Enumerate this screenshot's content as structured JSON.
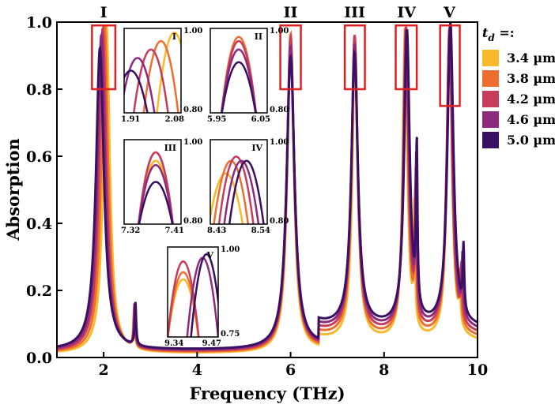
{
  "chart_data": {
    "type": "line",
    "title": "",
    "xlabel": "Frequency (THz)",
    "ylabel": "Absorption",
    "xlim": [
      1,
      10
    ],
    "ylim": [
      0,
      1.0
    ],
    "xticks": [
      2,
      4,
      6,
      8,
      10
    ],
    "yticks": [
      0.0,
      0.2,
      0.4,
      0.6,
      0.8,
      1.0
    ],
    "xtick_labels": [
      "2",
      "4",
      "6",
      "8",
      "10"
    ],
    "ytick_labels": [
      "0.0",
      "0.2",
      "0.4",
      "0.6",
      "0.8",
      "1.0"
    ],
    "grid": false,
    "legend_title": "t_d =:",
    "legend_title_main": "t",
    "legend_title_sub": "d",
    "legend_title_tail": " =:",
    "legend_position": "right",
    "peaks": [
      {
        "label": "I",
        "freq": 2.0
      },
      {
        "label": "II",
        "freq": 6.0
      },
      {
        "label": "III",
        "freq": 7.37
      },
      {
        "label": "IV",
        "freq": 8.48
      },
      {
        "label": "V",
        "freq": 9.4
      }
    ],
    "highlight_boxes": [
      {
        "x": [
          1.75,
          2.25
        ],
        "y": [
          0.8,
          0.99
        ]
      },
      {
        "x": [
          5.78,
          6.22
        ],
        "y": [
          0.8,
          0.99
        ]
      },
      {
        "x": [
          7.16,
          7.59
        ],
        "y": [
          0.8,
          0.99
        ]
      },
      {
        "x": [
          8.25,
          8.7
        ],
        "y": [
          0.8,
          0.99
        ]
      },
      {
        "x": [
          9.2,
          9.62
        ],
        "y": [
          0.75,
          0.99
        ]
      }
    ],
    "series": [
      {
        "name": "3.4 µm",
        "color": "#F9B92A",
        "peaks": [
          [
            2.06,
            0.99
          ],
          [
            6.0,
            0.95
          ],
          [
            7.38,
            0.93
          ],
          [
            8.45,
            0.97
          ],
          [
            9.4,
            0.97
          ]
        ],
        "side_peaks": [
          [
            2.65,
            0.12
          ],
          [
            8.65,
            0.36
          ],
          [
            9.62,
            0.13
          ]
        ],
        "baseline": 0.045
      },
      {
        "name": "3.8 µm",
        "color": "#EE6E30",
        "peaks": [
          [
            2.02,
            0.99
          ],
          [
            6.0,
            0.96
          ],
          [
            7.37,
            0.94
          ],
          [
            8.46,
            0.97
          ],
          [
            9.4,
            0.97
          ]
        ],
        "side_peaks": [
          [
            2.66,
            0.12
          ],
          [
            8.67,
            0.4
          ],
          [
            9.64,
            0.15
          ]
        ],
        "baseline": 0.055
      },
      {
        "name": "4.2 µm",
        "color": "#C63C5A",
        "peaks": [
          [
            1.98,
            0.98
          ],
          [
            6.0,
            0.95
          ],
          [
            7.37,
            0.95
          ],
          [
            8.47,
            0.97
          ],
          [
            9.4,
            0.97
          ]
        ],
        "side_peaks": [
          [
            2.66,
            0.13
          ],
          [
            8.68,
            0.44
          ],
          [
            9.66,
            0.17
          ]
        ],
        "baseline": 0.065
      },
      {
        "name": "4.6 µm",
        "color": "#8E2A7E",
        "peaks": [
          [
            1.95,
            0.96
          ],
          [
            6.0,
            0.92
          ],
          [
            7.37,
            0.92
          ],
          [
            8.48,
            0.96
          ],
          [
            9.41,
            0.98
          ]
        ],
        "side_peaks": [
          [
            2.67,
            0.13
          ],
          [
            8.69,
            0.48
          ],
          [
            9.68,
            0.19
          ]
        ],
        "baseline": 0.075
      },
      {
        "name": "5.0 µm",
        "color": "#3A1064",
        "peaks": [
          [
            1.92,
            0.92
          ],
          [
            6.0,
            0.89
          ],
          [
            7.37,
            0.89
          ],
          [
            8.49,
            0.96
          ],
          [
            9.42,
            0.99
          ]
        ],
        "side_peaks": [
          [
            2.68,
            0.13
          ],
          [
            8.7,
            0.52
          ],
          [
            9.7,
            0.21
          ]
        ],
        "baseline": 0.085
      }
    ],
    "insets": [
      {
        "id": "I",
        "xlim": [
          1.91,
          2.08
        ],
        "ylim": [
          0.8,
          1.0
        ],
        "xlabels": [
          "1.91",
          "2.08"
        ],
        "ylabels": [
          "0.80",
          "1.00"
        ],
        "peaks": [
          [
            2.06,
            0.99
          ],
          [
            2.02,
            0.97
          ],
          [
            1.99,
            0.95
          ],
          [
            1.95,
            0.93
          ],
          [
            1.93,
            0.9
          ]
        ]
      },
      {
        "id": "II",
        "xlim": [
          5.95,
          6.05
        ],
        "ylim": [
          0.8,
          1.0
        ],
        "xlabels": [
          "5.95",
          "6.05"
        ],
        "ylabels": [
          "0.80",
          "1.00"
        ],
        "peaks": [
          [
            6.0,
            0.97
          ],
          [
            6.0,
            0.98
          ],
          [
            6.0,
            0.97
          ],
          [
            6.0,
            0.95
          ],
          [
            6.0,
            0.92
          ]
        ]
      },
      {
        "id": "III",
        "xlim": [
          7.32,
          7.41
        ],
        "ylim": [
          0.8,
          1.0
        ],
        "xlabels": [
          "7.32",
          "7.41"
        ],
        "ylabels": [
          "0.80",
          "1.00"
        ],
        "peaks": [
          [
            7.37,
            0.95
          ],
          [
            7.37,
            0.97
          ],
          [
            7.37,
            0.97
          ],
          [
            7.37,
            0.94
          ],
          [
            7.37,
            0.9
          ]
        ]
      },
      {
        "id": "IV",
        "xlim": [
          8.43,
          8.54
        ],
        "ylim": [
          0.8,
          1.0
        ],
        "xlabels": [
          "8.43",
          "8.54"
        ],
        "ylabels": [
          "0.80",
          "1.00"
        ],
        "peaks": [
          [
            8.46,
            0.92
          ],
          [
            8.47,
            0.95
          ],
          [
            8.48,
            0.96
          ],
          [
            8.49,
            0.95
          ],
          [
            8.5,
            0.95
          ]
        ]
      },
      {
        "id": "V",
        "xlim": [
          9.34,
          9.47
        ],
        "ylim": [
          0.75,
          1.0
        ],
        "xlabels": [
          "9.34",
          "9.47"
        ],
        "ylabels": [
          "0.75",
          "1.00"
        ],
        "peaks": [
          [
            9.38,
            0.91
          ],
          [
            9.38,
            0.93
          ],
          [
            9.38,
            0.96
          ],
          [
            9.43,
            0.97
          ],
          [
            9.44,
            0.98
          ]
        ]
      }
    ]
  }
}
